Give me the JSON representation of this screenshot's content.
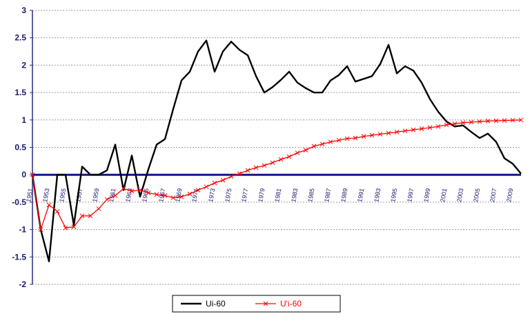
{
  "chart_data": {
    "type": "line",
    "title": "",
    "xlabel": "",
    "ylabel": "",
    "ylim": [
      -2,
      3
    ],
    "yticks": [
      "3",
      "2.5",
      "2",
      "1.5",
      "1",
      "0.5",
      "0",
      "-0.5",
      "-1",
      "-1.5",
      "-2"
    ],
    "x_tick_labels": [
      "1951",
      "1953",
      "1955",
      "1957",
      "1959",
      "1961",
      "1963",
      "1965",
      "1967",
      "1969",
      "1971",
      "1973",
      "1975",
      "1977",
      "1979",
      "1981",
      "1983",
      "1985",
      "1987",
      "1989",
      "1991",
      "1993",
      "1995",
      "1997",
      "1999",
      "2001",
      "2003",
      "2005",
      "2007",
      "2009"
    ],
    "x": [
      1951,
      1952,
      1953,
      1954,
      1955,
      1956,
      1957,
      1958,
      1959,
      1960,
      1961,
      1962,
      1963,
      1964,
      1965,
      1966,
      1967,
      1968,
      1969,
      1970,
      1971,
      1972,
      1973,
      1974,
      1975,
      1976,
      1977,
      1978,
      1979,
      1980,
      1981,
      1982,
      1983,
      1984,
      1985,
      1986,
      1987,
      1988,
      1989,
      1990,
      1991,
      1992,
      1993,
      1994,
      1995,
      1996,
      1997,
      1998,
      1999,
      2000,
      2001,
      2002,
      2003,
      2004,
      2005,
      2006,
      2007,
      2008,
      2009,
      2010
    ],
    "grid": true,
    "legend_position": "bottom",
    "series": [
      {
        "name": "Ui-60",
        "color": "#000000",
        "marker": "none",
        "values": [
          0.0,
          -1.0,
          -1.58,
          0.0,
          0.0,
          -0.92,
          0.15,
          0.0,
          0.0,
          0.08,
          0.55,
          -0.28,
          0.35,
          -0.4,
          0.1,
          0.55,
          0.65,
          1.2,
          1.72,
          1.88,
          2.25,
          2.45,
          1.88,
          2.25,
          2.43,
          2.28,
          2.18,
          1.8,
          1.5,
          1.6,
          1.73,
          1.88,
          1.68,
          1.58,
          1.5,
          1.5,
          1.72,
          1.82,
          1.98,
          1.7,
          1.75,
          1.8,
          2.02,
          2.37,
          1.85,
          1.98,
          1.9,
          1.68,
          1.38,
          1.15,
          0.97,
          0.88,
          0.9,
          0.78,
          0.67,
          0.75,
          0.6,
          0.3,
          0.2,
          0.02
        ]
      },
      {
        "name": "U'i-60",
        "color": "#ff0000",
        "marker": "x",
        "values": [
          0.0,
          -1.0,
          -0.55,
          -0.67,
          -0.97,
          -0.95,
          -0.75,
          -0.75,
          -0.62,
          -0.45,
          -0.38,
          -0.25,
          -0.3,
          -0.28,
          -0.33,
          -0.36,
          -0.38,
          -0.42,
          -0.4,
          -0.35,
          -0.28,
          -0.22,
          -0.15,
          -0.1,
          -0.03,
          0.02,
          0.08,
          0.13,
          0.17,
          0.22,
          0.28,
          0.33,
          0.4,
          0.45,
          0.52,
          0.56,
          0.6,
          0.63,
          0.66,
          0.67,
          0.7,
          0.72,
          0.74,
          0.76,
          0.78,
          0.8,
          0.82,
          0.84,
          0.86,
          0.88,
          0.91,
          0.93,
          0.95,
          0.96,
          0.97,
          0.98,
          0.985,
          0.99,
          0.995,
          1.0
        ]
      }
    ]
  }
}
